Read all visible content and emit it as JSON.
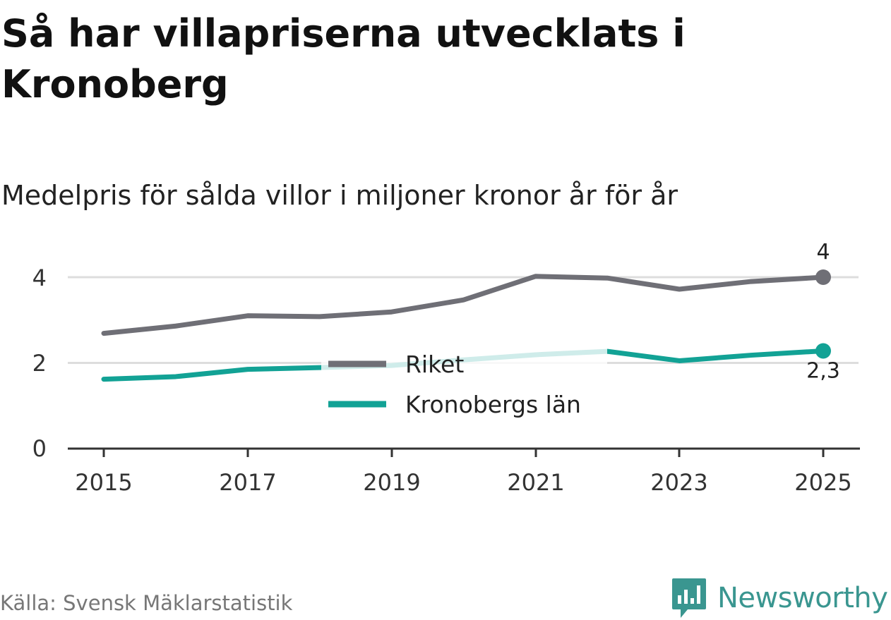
{
  "title": "Så har villapriserna utvecklats i Kronoberg",
  "subtitle": "Medelpris för sålda villor i miljoner kronor år för år",
  "source": "Källa: Svensk Mäklarstatistik",
  "brand": "Newsworthy",
  "colors": {
    "riket": "#6f6f76",
    "kronoberg": "#12a295",
    "grid": "#dddddd",
    "axis": "#333333",
    "brand": "#3a9690"
  },
  "chart_data": {
    "type": "line",
    "x": [
      2015,
      2016,
      2017,
      2018,
      2019,
      2020,
      2021,
      2022,
      2023,
      2024,
      2025
    ],
    "xticks": [
      "2015",
      "2017",
      "2019",
      "2021",
      "2023",
      "2025"
    ],
    "yticks": [
      "0",
      "2",
      "4"
    ],
    "ylim": [
      0,
      4.4
    ],
    "series": [
      {
        "name": "Riket",
        "values": [
          2.69,
          2.86,
          3.1,
          3.08,
          3.19,
          3.47,
          4.02,
          3.98,
          3.72,
          3.9,
          4.0
        ],
        "end_label": "4"
      },
      {
        "name": "Kronobergs län",
        "values": [
          1.62,
          1.68,
          1.85,
          1.89,
          1.94,
          2.07,
          2.19,
          2.27,
          2.05,
          2.18,
          2.28
        ],
        "end_label": "2,3"
      }
    ],
    "legend": "center"
  }
}
